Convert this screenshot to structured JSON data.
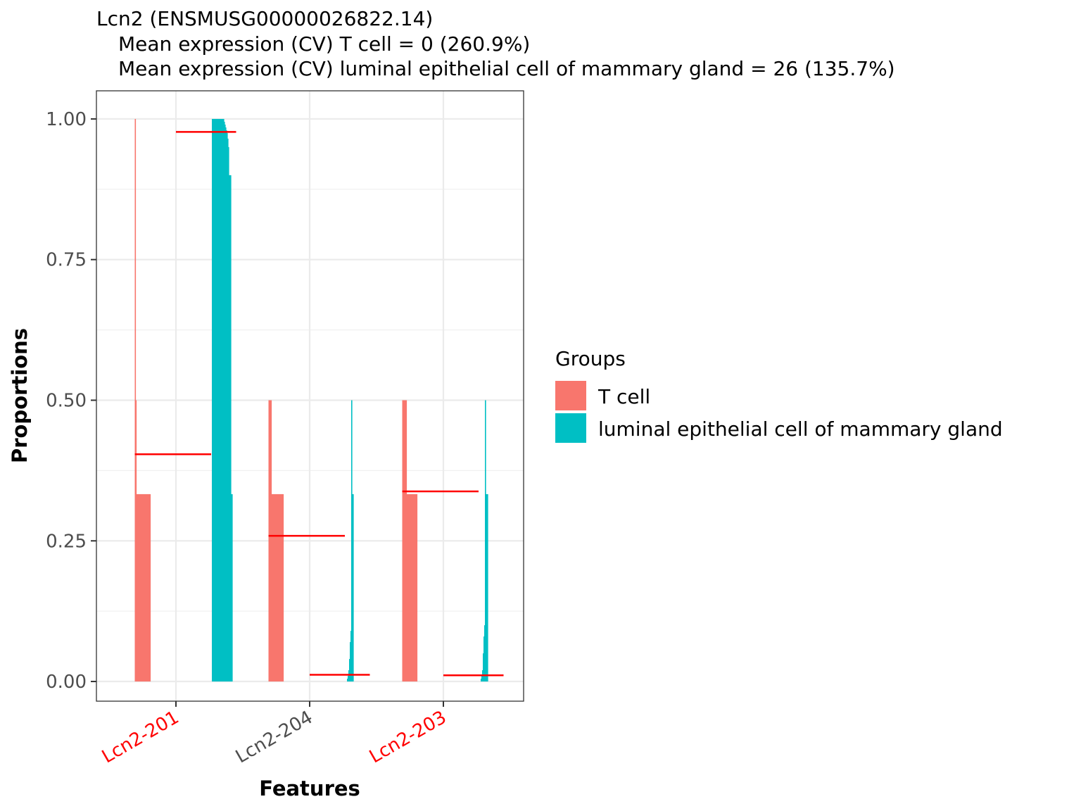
{
  "chart_data": {
    "type": "bar",
    "title_lines": [
      "Lcn2 (ENSMUSG00000026822.14)",
      "Mean expression (CV) T cell = 0 (260.9%)",
      "Mean expression (CV) luminal epithelial cell of mammary gland = 26 (135.7%)"
    ],
    "xlabel": "Features",
    "ylabel": "Proportions",
    "ylim": [
      -0.035,
      1.05
    ],
    "y_ticks": [
      0.0,
      0.25,
      0.5,
      0.75,
      1.0
    ],
    "y_tick_labels": [
      "0.00",
      "0.25",
      "0.50",
      "0.75",
      "1.00"
    ],
    "grid": true,
    "categories": [
      {
        "label": "Lcn2-201",
        "color": "#ff0000"
      },
      {
        "label": "Lcn2-204",
        "color": "#4d4d4d"
      },
      {
        "label": "Lcn2-203",
        "color": "#ff0000"
      }
    ],
    "legend": {
      "title": "Groups",
      "position": "right",
      "entries": [
        {
          "name": "T cell",
          "color": "#F8766D"
        },
        {
          "name": "luminal epithelial cell of mammary gland",
          "color": "#00BFC4"
        }
      ]
    },
    "series": [
      {
        "name": "T cell",
        "color": "#F8766D",
        "by_category": [
          [
            1.0,
            0.5,
            0.333,
            0.333,
            0.333,
            0.333,
            0.333,
            0.333,
            0.333,
            0.333,
            0.333,
            0.333,
            0.333,
            0.333,
            0.333,
            0.333,
            0.333,
            0.333,
            0.333,
            0.333,
            0.333,
            0.333
          ],
          [
            0.5,
            0.5,
            0.5,
            0.5,
            0.333,
            0.333,
            0.333,
            0.333,
            0.333,
            0.333,
            0.333,
            0.333,
            0.333,
            0.333,
            0.333,
            0.333,
            0.333,
            0.333,
            0.333,
            0.333,
            0.333
          ],
          [
            0.5,
            0.5,
            0.5,
            0.5,
            0.5,
            0.5,
            0.333,
            0.333,
            0.333,
            0.333,
            0.333,
            0.333,
            0.333,
            0.333,
            0.333,
            0.333,
            0.333,
            0.333,
            0.333,
            0.333,
            0.333
          ]
        ]
      },
      {
        "name": "luminal epithelial cell of mammary gland",
        "color": "#00BFC4",
        "by_category": [
          [
            1.0,
            1.0,
            1.0,
            1.0,
            1.0,
            1.0,
            1.0,
            1.0,
            1.0,
            1.0,
            1.0,
            1.0,
            1.0,
            1.0,
            1.0,
            1.0,
            1.0,
            0.995,
            0.99,
            0.985,
            0.98,
            0.975,
            0.965,
            0.95,
            0.9,
            0.9,
            0.9,
            0.333,
            0.333
          ],
          [
            0.0,
            0.0,
            0.005,
            0.01,
            0.02,
            0.04,
            0.07,
            0.09,
            0.5,
            0.333,
            0.333
          ],
          [
            0.0,
            0.0,
            0.005,
            0.01,
            0.02,
            0.05,
            0.08,
            0.1,
            0.5,
            0.333,
            0.333,
            0.333
          ]
        ]
      }
    ],
    "mean_lines": {
      "color": "#ff0000",
      "T cell": [
        0.404,
        0.259,
        0.338
      ],
      "luminal epithelial cell of mammary gland": [
        0.977,
        0.012,
        0.011
      ]
    }
  }
}
